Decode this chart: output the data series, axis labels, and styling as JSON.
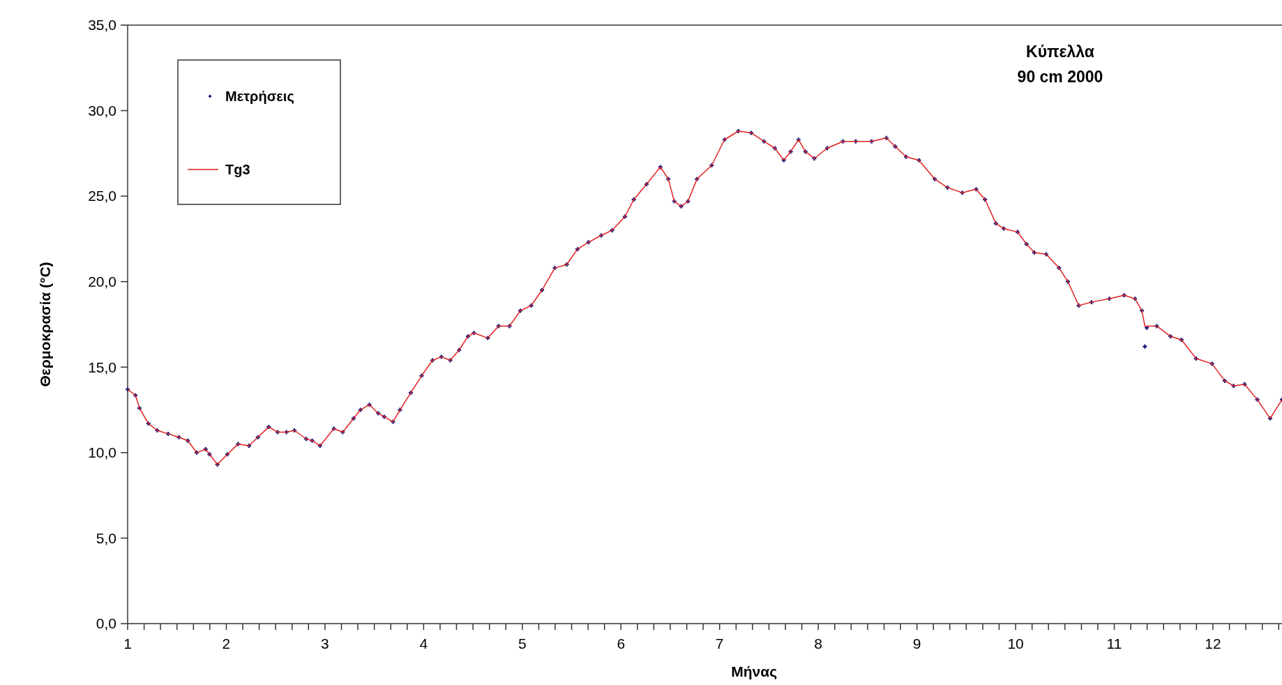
{
  "chart_data": {
    "type": "scatter",
    "title": "Κύπελλα",
    "subtitle": "90 cm 2000",
    "xlabel": "Μήνας",
    "ylabel": "Θερμοκρασία (°C)",
    "x": [
      1.0,
      1.08,
      1.12,
      1.21,
      1.3,
      1.41,
      1.52,
      1.61,
      1.7,
      1.79,
      1.83,
      1.91,
      2.01,
      2.12,
      2.23,
      2.32,
      2.43,
      2.52,
      2.61,
      2.69,
      2.81,
      2.87,
      2.95,
      3.09,
      3.18,
      3.29,
      3.36,
      3.45,
      3.54,
      3.6,
      3.69,
      3.76,
      3.87,
      3.98,
      4.09,
      4.18,
      4.27,
      4.36,
      4.45,
      4.51,
      4.65,
      4.76,
      4.87,
      4.98,
      5.09,
      5.2,
      5.33,
      5.45,
      5.56,
      5.67,
      5.8,
      5.91,
      6.04,
      6.13,
      6.26,
      6.4,
      6.48,
      6.54,
      6.61,
      6.68,
      6.77,
      6.92,
      7.05,
      7.19,
      7.32,
      7.45,
      7.56,
      7.65,
      7.72,
      7.8,
      7.87,
      7.96,
      8.09,
      8.25,
      8.38,
      8.54,
      8.69,
      8.78,
      8.89,
      9.02,
      9.18,
      9.31,
      9.46,
      9.6,
      9.69,
      9.8,
      9.88,
      10.02,
      10.11,
      10.19,
      10.31,
      10.44,
      10.53,
      10.64,
      10.77,
      10.95,
      11.1,
      11.21,
      11.28,
      11.31,
      11.33,
      11.43,
      11.57,
      11.68,
      11.83,
      11.99,
      12.12,
      12.21,
      12.32,
      12.45,
      12.58,
      12.7
    ],
    "series": [
      {
        "name": "Μετρήσεις",
        "color": "#1a1a7a",
        "marker": "cross",
        "values": [
          13.7,
          13.35,
          12.6,
          11.7,
          11.3,
          11.1,
          10.9,
          10.7,
          10.0,
          10.2,
          9.9,
          9.3,
          9.9,
          10.5,
          10.4,
          10.9,
          11.5,
          11.2,
          11.2,
          11.3,
          10.8,
          10.7,
          10.4,
          11.4,
          11.2,
          12.0,
          12.5,
          12.8,
          12.3,
          12.1,
          11.8,
          12.5,
          13.5,
          14.5,
          15.4,
          15.6,
          15.4,
          16.0,
          16.8,
          17.0,
          16.7,
          17.4,
          17.4,
          18.3,
          18.6,
          19.5,
          20.8,
          21.0,
          21.9,
          22.3,
          22.7,
          23.0,
          23.8,
          24.8,
          25.7,
          26.7,
          26.0,
          24.7,
          24.4,
          24.7,
          26.0,
          26.8,
          28.3,
          28.8,
          28.7,
          28.2,
          27.8,
          27.1,
          27.6,
          28.3,
          27.6,
          27.2,
          27.8,
          28.2,
          28.2,
          28.2,
          28.4,
          27.9,
          27.3,
          27.1,
          26.0,
          25.5,
          25.2,
          25.4,
          24.8,
          23.4,
          23.1,
          22.9,
          22.2,
          21.7,
          21.6,
          20.8,
          20.0,
          18.6,
          18.8,
          19.0,
          19.2,
          19.0,
          18.3,
          16.2,
          17.3,
          17.4,
          16.8,
          16.6,
          15.5,
          15.2,
          14.2,
          13.9,
          14.0,
          13.1,
          12.0,
          13.1
        ]
      },
      {
        "name": "Tg3",
        "type": "line",
        "color": "#e02020",
        "marker": "none",
        "line_style": "solid",
        "values": [
          13.7,
          13.35,
          12.6,
          11.7,
          11.3,
          11.1,
          10.9,
          10.7,
          10.0,
          10.2,
          9.9,
          9.3,
          9.9,
          10.5,
          10.4,
          10.9,
          11.5,
          11.2,
          11.2,
          11.3,
          10.8,
          10.7,
          10.4,
          11.4,
          11.2,
          12.0,
          12.5,
          12.8,
          12.3,
          12.1,
          11.8,
          12.5,
          13.5,
          14.5,
          15.4,
          15.6,
          15.4,
          16.0,
          16.8,
          17.0,
          16.7,
          17.4,
          17.4,
          18.3,
          18.6,
          19.5,
          20.8,
          21.0,
          21.9,
          22.3,
          22.7,
          23.0,
          23.8,
          24.8,
          25.7,
          26.7,
          26.0,
          24.7,
          24.4,
          24.7,
          26.0,
          26.8,
          28.3,
          28.8,
          28.7,
          28.2,
          27.8,
          27.1,
          27.6,
          28.3,
          27.6,
          27.2,
          27.8,
          28.2,
          28.2,
          28.2,
          28.4,
          27.9,
          27.3,
          27.1,
          26.0,
          25.5,
          25.2,
          25.4,
          24.8,
          23.4,
          23.1,
          22.9,
          22.2,
          21.7,
          21.6,
          20.8,
          20.0,
          18.6,
          18.8,
          19.0,
          19.2,
          19.0,
          18.3,
          17.4,
          17.4,
          17.4,
          16.8,
          16.6,
          15.5,
          15.2,
          14.2,
          13.9,
          14.0,
          13.1,
          12.0,
          13.1
        ]
      }
    ],
    "xlim": [
      1,
      12.7
    ],
    "ylim": [
      0,
      35
    ],
    "xticks": [
      1,
      {
        "value": 1.167,
        "label": null
      },
      {
        "value": 1.333,
        "label": null
      },
      {
        "value": 1.5,
        "label": null
      },
      {
        "value": 1.667,
        "label": null
      },
      {
        "value": 1.833,
        "label": null
      },
      2,
      {
        "value": 2.167,
        "label": null
      },
      {
        "value": 2.333,
        "label": null
      },
      {
        "value": 2.5,
        "label": null
      },
      {
        "value": 2.667,
        "label": null
      },
      {
        "value": 2.833,
        "label": null
      },
      3,
      {
        "value": 3.167,
        "label": null
      },
      {
        "value": 3.333,
        "label": null
      },
      {
        "value": 3.5,
        "label": null
      },
      {
        "value": 3.667,
        "label": null
      },
      {
        "value": 3.833,
        "label": null
      },
      4,
      {
        "value": 4.167,
        "label": null
      },
      {
        "value": 4.333,
        "label": null
      },
      {
        "value": 4.5,
        "label": null
      },
      {
        "value": 4.667,
        "label": null
      },
      {
        "value": 4.833,
        "label": null
      },
      5,
      {
        "value": 5.167,
        "label": null
      },
      {
        "value": 5.333,
        "label": null
      },
      {
        "value": 5.5,
        "label": null
      },
      {
        "value": 5.667,
        "label": null
      },
      {
        "value": 5.833,
        "label": null
      },
      6,
      {
        "value": 6.167,
        "label": null
      },
      {
        "value": 6.333,
        "label": null
      },
      {
        "value": 6.5,
        "label": null
      },
      {
        "value": 6.667,
        "label": null
      },
      {
        "value": 6.833,
        "label": null
      },
      7,
      {
        "value": 7.167,
        "label": null
      },
      {
        "value": 7.333,
        "label": null
      },
      {
        "value": 7.5,
        "label": null
      },
      {
        "value": 7.667,
        "label": null
      },
      {
        "value": 7.833,
        "label": null
      },
      8,
      {
        "value": 8.167,
        "label": null
      },
      {
        "value": 8.333,
        "label": null
      },
      {
        "value": 8.5,
        "label": null
      },
      {
        "value": 8.667,
        "label": null
      },
      {
        "value": 8.833,
        "label": null
      },
      9,
      {
        "value": 9.167,
        "label": null
      },
      {
        "value": 9.333,
        "label": null
      },
      {
        "value": 9.5,
        "label": null
      },
      {
        "value": 9.667,
        "label": null
      },
      {
        "value": 9.833,
        "label": null
      },
      10,
      {
        "value": 10.167,
        "label": null
      },
      {
        "value": 10.333,
        "label": null
      },
      {
        "value": 10.5,
        "label": null
      },
      {
        "value": 10.667,
        "label": null
      },
      {
        "value": 10.833,
        "label": null
      },
      11,
      {
        "value": 11.167,
        "label": null
      },
      {
        "value": 11.333,
        "label": null
      },
      {
        "value": 11.5,
        "label": null
      },
      {
        "value": 11.667,
        "label": null
      },
      {
        "value": 11.833,
        "label": null
      },
      12,
      {
        "value": 12.167,
        "label": null
      },
      {
        "value": 12.333,
        "label": null
      },
      {
        "value": 12.5,
        "label": null
      },
      {
        "value": 12.667,
        "label": null
      }
    ],
    "yticks": [
      {
        "value": 0,
        "label": "0,0"
      },
      {
        "value": 5,
        "label": "5,0"
      },
      {
        "value": 10,
        "label": "10,0"
      },
      {
        "value": 15,
        "label": "15,0"
      },
      {
        "value": 20,
        "label": "20,0"
      },
      {
        "value": 25,
        "label": "25,0"
      },
      {
        "value": 30,
        "label": "30,0"
      },
      {
        "value": 35,
        "label": "35,0"
      }
    ],
    "grid": false,
    "legend": "top left"
  }
}
